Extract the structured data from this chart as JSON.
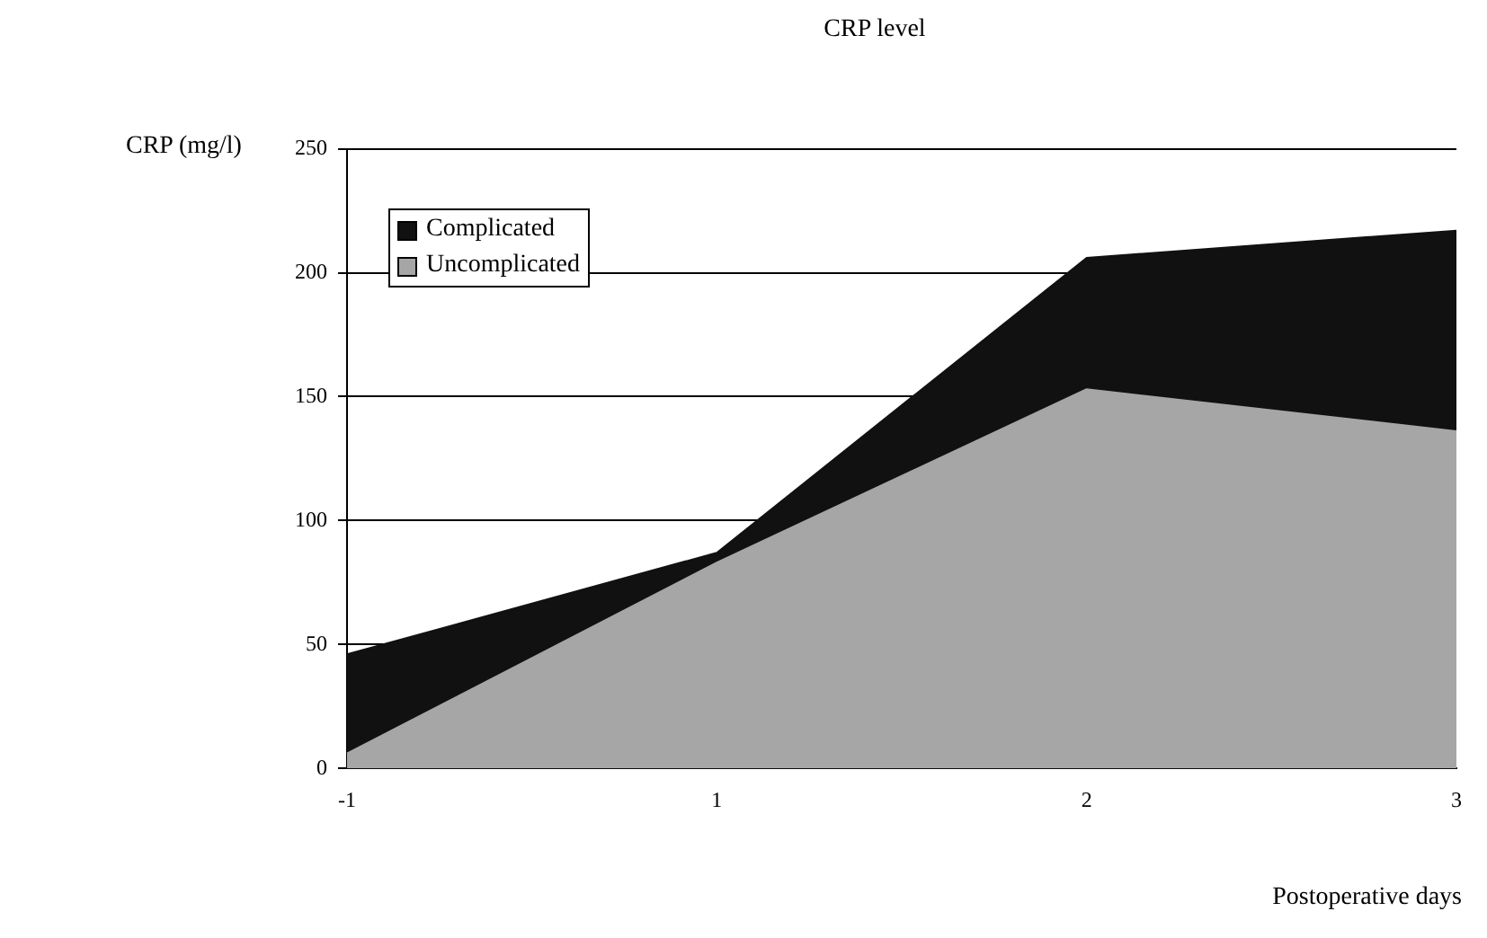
{
  "chart_data": {
    "type": "area",
    "title": "CRP level",
    "xlabel": "Postoperative days",
    "ylabel": "CRP (mg/l)",
    "categories": [
      "-1",
      "1",
      "2",
      "3"
    ],
    "series": [
      {
        "name": "Complicated",
        "color": "#111111",
        "values": [
          46,
          87,
          206,
          217
        ]
      },
      {
        "name": "Uncomplicated",
        "color": "#a6a6a6",
        "values": [
          6,
          83,
          153,
          136
        ]
      }
    ],
    "ylim": [
      0,
      250
    ],
    "yticks": [
      0,
      50,
      100,
      150,
      200,
      250
    ],
    "grid": "y",
    "legend": "top left"
  }
}
